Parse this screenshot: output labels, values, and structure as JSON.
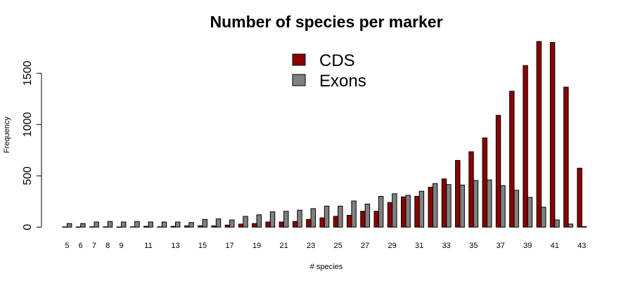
{
  "chart_data": {
    "type": "bar",
    "title": "Number of species per marker",
    "xlabel": "# species",
    "ylabel": "Frequency",
    "ylim": [
      0,
      1820
    ],
    "yticks": [
      0,
      500,
      1000,
      1500
    ],
    "grid": false,
    "legend_position": "top-center",
    "categories": [
      "5",
      "6",
      "7",
      "8",
      "9",
      "10",
      "11",
      "12",
      "13",
      "14",
      "15",
      "16",
      "17",
      "18",
      "19",
      "20",
      "21",
      "22",
      "23",
      "24",
      "25",
      "26",
      "27",
      "28",
      "29",
      "30",
      "31",
      "32",
      "33",
      "34",
      "35",
      "36",
      "37",
      "38",
      "39",
      "40",
      "41",
      "42",
      "43"
    ],
    "shown_tick_labels": [
      "5",
      "6",
      "7",
      "8",
      "9",
      "11",
      "13",
      "15",
      "17",
      "19",
      "21",
      "23",
      "25",
      "27",
      "29",
      "31",
      "33",
      "35",
      "37",
      "39",
      "41",
      "43"
    ],
    "series": [
      {
        "name": "CDS",
        "color": "#8b0000",
        "values": [
          2,
          2,
          3,
          3,
          2,
          3,
          8,
          3,
          8,
          12,
          12,
          12,
          20,
          30,
          35,
          50,
          50,
          55,
          75,
          90,
          105,
          115,
          155,
          155,
          240,
          295,
          300,
          390,
          470,
          650,
          735,
          870,
          1090,
          1325,
          1575,
          1810,
          1800,
          1365,
          575
        ]
      },
      {
        "name": "Exons",
        "color": "#808080",
        "values": [
          35,
          35,
          50,
          55,
          50,
          55,
          50,
          50,
          50,
          45,
          75,
          80,
          70,
          105,
          120,
          150,
          155,
          165,
          180,
          205,
          205,
          255,
          225,
          300,
          325,
          310,
          350,
          425,
          415,
          410,
          455,
          460,
          405,
          360,
          290,
          195,
          70,
          30,
          5
        ]
      }
    ]
  }
}
